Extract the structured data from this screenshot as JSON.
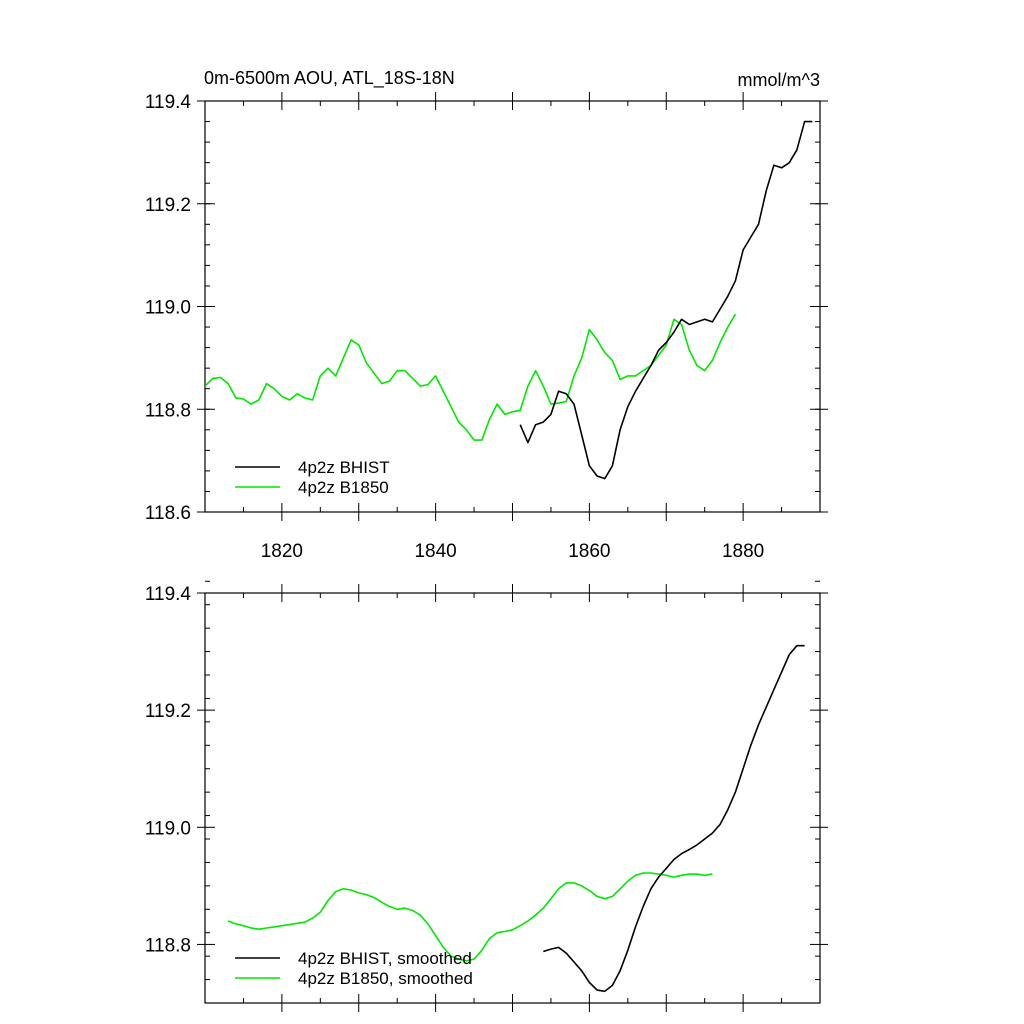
{
  "header": {
    "title": "0m-6500m AOU, ATL_18S-18N",
    "units": "mmol/m^3"
  },
  "chart_data": [
    {
      "type": "line",
      "title": "0m-6500m AOU, ATL_18S-18N",
      "units": "mmol/m^3",
      "xlim": [
        1810,
        1890
      ],
      "ylim": [
        118.6,
        119.4
      ],
      "x_ticks": [
        1820,
        1840,
        1860,
        1880
      ],
      "x_tick_labels": [
        "1820",
        "1840",
        "1860",
        "1880"
      ],
      "y_ticks": [
        118.6,
        118.8,
        119.0,
        119.2,
        119.4
      ],
      "y_tick_labels": [
        "118.6",
        "118.8",
        "119.0",
        "119.2",
        "119.4"
      ],
      "legend_position": "bottom-left",
      "series": [
        {
          "name": "4p2z BHIST",
          "color": "#000000",
          "x": [
            1851,
            1852,
            1853,
            1854,
            1855,
            1856,
            1857,
            1858,
            1859,
            1860,
            1861,
            1862,
            1863,
            1864,
            1865,
            1866,
            1867,
            1868,
            1869,
            1870,
            1871,
            1872,
            1873,
            1874,
            1875,
            1876,
            1877,
            1878,
            1879,
            1880,
            1881,
            1882,
            1883,
            1884,
            1885,
            1886,
            1887,
            1888,
            1889
          ],
          "values": [
            118.77,
            118.735,
            118.77,
            118.775,
            118.79,
            118.835,
            118.83,
            118.81,
            118.75,
            118.69,
            118.67,
            118.665,
            118.69,
            118.76,
            118.805,
            118.835,
            118.86,
            118.885,
            118.915,
            118.93,
            118.95,
            118.975,
            118.965,
            118.97,
            118.975,
            118.97,
            118.995,
            119.02,
            119.05,
            119.11,
            119.135,
            119.16,
            119.225,
            119.275,
            119.27,
            119.28,
            119.305,
            119.36,
            119.36
          ]
        },
        {
          "name": "4p2z B1850",
          "color": "#00e800",
          "x": [
            1810,
            1811,
            1812,
            1813,
            1814,
            1815,
            1816,
            1817,
            1818,
            1819,
            1820,
            1821,
            1822,
            1823,
            1824,
            1825,
            1826,
            1827,
            1828,
            1829,
            1830,
            1831,
            1832,
            1833,
            1834,
            1835,
            1836,
            1837,
            1838,
            1839,
            1840,
            1841,
            1842,
            1843,
            1844,
            1845,
            1846,
            1847,
            1848,
            1849,
            1850,
            1851,
            1852,
            1853,
            1854,
            1855,
            1856,
            1857,
            1858,
            1859,
            1860,
            1861,
            1862,
            1863,
            1864,
            1865,
            1866,
            1867,
            1868,
            1869,
            1870,
            1871,
            1872,
            1873,
            1874,
            1875,
            1876,
            1877,
            1878,
            1879
          ],
          "values": [
            118.845,
            118.86,
            118.862,
            118.85,
            118.822,
            118.82,
            118.81,
            118.818,
            118.85,
            118.84,
            118.825,
            118.818,
            118.83,
            118.822,
            118.818,
            118.865,
            118.88,
            118.865,
            118.9,
            118.935,
            118.925,
            118.89,
            118.87,
            118.85,
            118.855,
            118.875,
            118.875,
            118.86,
            118.845,
            118.848,
            118.865,
            118.835,
            118.805,
            118.775,
            118.76,
            118.74,
            118.74,
            118.78,
            118.81,
            118.79,
            118.795,
            118.798,
            118.845,
            118.875,
            118.845,
            118.81,
            118.812,
            118.815,
            118.865,
            118.9,
            118.955,
            118.935,
            118.91,
            118.895,
            118.858,
            118.865,
            118.865,
            118.875,
            118.885,
            118.905,
            118.925,
            118.975,
            118.965,
            118.915,
            118.885,
            118.875,
            118.895,
            118.93,
            118.96,
            118.985
          ]
        }
      ]
    },
    {
      "type": "line",
      "xlim": [
        1810,
        1890
      ],
      "ylim": [
        118.7,
        119.4
      ],
      "y_ticks": [
        118.8,
        119.0,
        119.2,
        119.4
      ],
      "y_tick_labels": [
        "118.8",
        "119.0",
        "119.2",
        "119.4"
      ],
      "legend_position": "bottom-left",
      "series": [
        {
          "name": "4p2z BHIST, smoothed",
          "color": "#000000",
          "x": [
            1854,
            1855,
            1856,
            1857,
            1858,
            1859,
            1860,
            1861,
            1862,
            1863,
            1864,
            1865,
            1866,
            1867,
            1868,
            1869,
            1870,
            1871,
            1872,
            1873,
            1874,
            1875,
            1876,
            1877,
            1878,
            1879,
            1880,
            1881,
            1882,
            1883,
            1884,
            1885,
            1886,
            1887,
            1888
          ],
          "values": [
            118.788,
            118.792,
            118.795,
            118.785,
            118.77,
            118.755,
            118.735,
            118.722,
            118.72,
            118.73,
            118.755,
            118.79,
            118.83,
            118.865,
            118.895,
            118.915,
            118.93,
            118.945,
            118.955,
            118.962,
            118.97,
            118.98,
            118.99,
            119.005,
            119.03,
            119.06,
            119.1,
            119.14,
            119.175,
            119.205,
            119.235,
            119.265,
            119.295,
            119.31,
            119.31
          ]
        },
        {
          "name": "4p2z B1850, smoothed",
          "color": "#00e800",
          "x": [
            1813,
            1814,
            1815,
            1816,
            1817,
            1818,
            1819,
            1820,
            1821,
            1822,
            1823,
            1824,
            1825,
            1826,
            1827,
            1828,
            1829,
            1830,
            1831,
            1832,
            1833,
            1834,
            1835,
            1836,
            1837,
            1838,
            1839,
            1840,
            1841,
            1842,
            1843,
            1844,
            1845,
            1846,
            1847,
            1848,
            1849,
            1850,
            1851,
            1852,
            1853,
            1854,
            1855,
            1856,
            1857,
            1858,
            1859,
            1860,
            1861,
            1862,
            1863,
            1864,
            1865,
            1866,
            1867,
            1868,
            1869,
            1870,
            1871,
            1872,
            1873,
            1874,
            1875,
            1876
          ],
          "values": [
            118.84,
            118.835,
            118.832,
            118.828,
            118.826,
            118.828,
            118.83,
            118.832,
            118.834,
            118.836,
            118.838,
            118.845,
            118.855,
            118.875,
            118.89,
            118.895,
            118.893,
            118.888,
            118.885,
            118.88,
            118.872,
            118.865,
            118.86,
            118.862,
            118.858,
            118.85,
            118.835,
            118.815,
            118.795,
            118.78,
            118.775,
            118.772,
            118.775,
            118.79,
            118.81,
            118.82,
            118.822,
            118.825,
            118.832,
            118.84,
            118.85,
            118.862,
            118.878,
            118.895,
            118.905,
            118.905,
            118.9,
            118.892,
            118.882,
            118.878,
            118.882,
            118.895,
            118.908,
            118.918,
            118.922,
            118.922,
            118.92,
            118.918,
            118.915,
            118.918,
            118.92,
            118.92,
            118.918,
            118.92
          ]
        }
      ]
    }
  ]
}
